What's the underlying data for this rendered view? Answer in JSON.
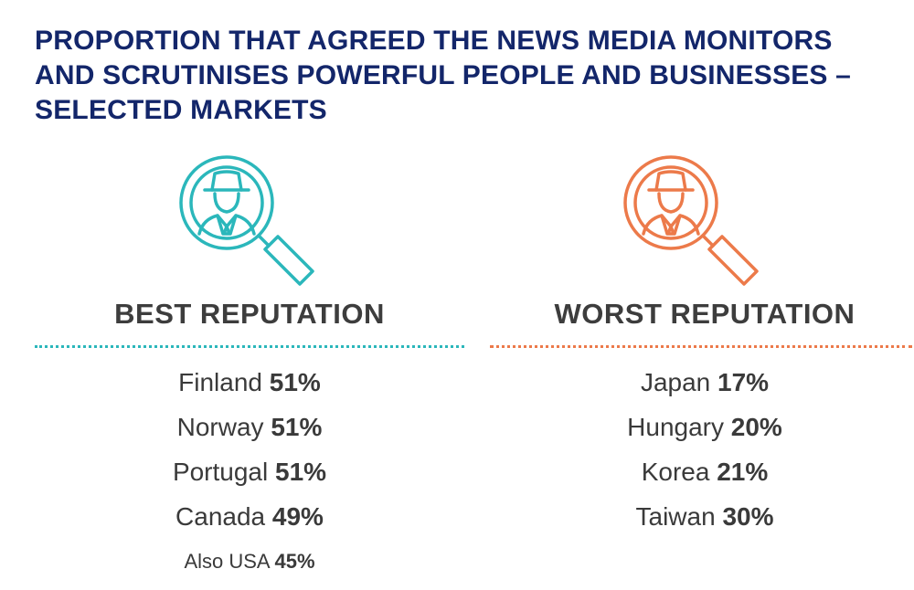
{
  "title": {
    "line1": "PROPORTION THAT AGREED THE NEWS MEDIA MONITORS",
    "line2": "AND SCRUTINISES POWERFUL PEOPLE AND BUSINESSES –",
    "line3": "SELECTED MARKETS"
  },
  "best": {
    "heading": "BEST REPUTATION",
    "color": "#2bb7bb",
    "icon": "magnifier-spy-icon",
    "items": [
      {
        "country": "Finland",
        "pct": "51%"
      },
      {
        "country": "Norway",
        "pct": "51%"
      },
      {
        "country": "Portugal",
        "pct": "51%"
      },
      {
        "country": "Canada",
        "pct": "49%"
      },
      {
        "country": "Also USA",
        "pct": "45%"
      }
    ]
  },
  "worst": {
    "heading": "WORST REPUTATION",
    "color": "#ec7a4a",
    "icon": "magnifier-spy-icon",
    "items": [
      {
        "country": "Japan",
        "pct": "17%"
      },
      {
        "country": "Hungary",
        "pct": "20%"
      },
      {
        "country": "Korea",
        "pct": "21%"
      },
      {
        "country": "Taiwan",
        "pct": "30%"
      }
    ]
  },
  "title_color": "#13266a"
}
